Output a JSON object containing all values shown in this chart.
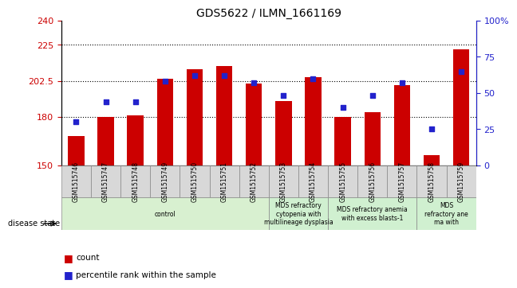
{
  "title": "GDS5622 / ILMN_1661169",
  "samples": [
    "GSM1515746",
    "GSM1515747",
    "GSM1515748",
    "GSM1515749",
    "GSM1515750",
    "GSM1515751",
    "GSM1515752",
    "GSM1515753",
    "GSM1515754",
    "GSM1515755",
    "GSM1515756",
    "GSM1515757",
    "GSM1515758",
    "GSM1515759"
  ],
  "bar_values": [
    168,
    180,
    181,
    204,
    210,
    212,
    201,
    190,
    205,
    180,
    183,
    200,
    156,
    222
  ],
  "dot_values": [
    30,
    44,
    44,
    58,
    62,
    62,
    57,
    48,
    60,
    40,
    48,
    57,
    25,
    65
  ],
  "ylim_left": [
    150,
    240
  ],
  "ylim_right": [
    0,
    100
  ],
  "yticks_left": [
    150,
    180,
    202.5,
    225,
    240
  ],
  "yticks_right": [
    0,
    25,
    50,
    75,
    100
  ],
  "bar_color": "#cc0000",
  "dot_color": "#2222cc",
  "disease_groups": [
    {
      "label": "control",
      "start": 0,
      "end": 7,
      "color": "#d8f0d0"
    },
    {
      "label": "MDS refractory\ncytopenia with\nmultilineage dysplasia",
      "start": 7,
      "end": 9,
      "color": "#d0f0d0"
    },
    {
      "label": "MDS refractory anemia\nwith excess blasts-1",
      "start": 9,
      "end": 12,
      "color": "#d0f0d0"
    },
    {
      "label": "MDS\nrefractory ane\nma with",
      "start": 12,
      "end": 14,
      "color": "#d0f0d0"
    }
  ],
  "legend_items": [
    "count",
    "percentile rank within the sample"
  ],
  "disease_state_label": "disease state",
  "grid_dotted_at": [
    180,
    202.5,
    225
  ]
}
